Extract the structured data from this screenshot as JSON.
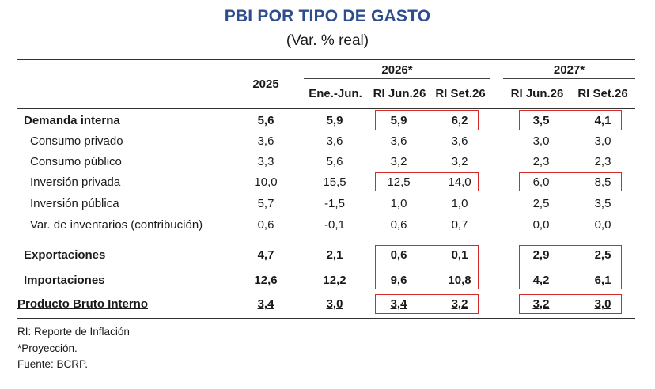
{
  "title": "PBI POR TIPO DE GASTO",
  "subtitle": "(Var. % real)",
  "headers": {
    "group_2026": "2026*",
    "group_2027": "2027*",
    "col_2025": "2025",
    "col_ene_jun": "Ene.-Jun.",
    "col_ri_jun26_a": "RI Jun.26",
    "col_ri_set26_a": "RI Set.26",
    "col_ri_jun26_b": "RI Jun.26",
    "col_ri_set26_b": "RI Set.26"
  },
  "rows": [
    {
      "label": "Demanda interna",
      "values": [
        "5,6",
        "5,9",
        "5,9",
        "6,2",
        "3,5",
        "4,1"
      ]
    },
    {
      "label": "Consumo privado",
      "values": [
        "3,6",
        "3,6",
        "3,6",
        "3,6",
        "3,0",
        "3,0"
      ]
    },
    {
      "label": "Consumo público",
      "values": [
        "3,3",
        "5,6",
        "3,2",
        "3,2",
        "2,3",
        "2,3"
      ]
    },
    {
      "label": "Inversión privada",
      "values": [
        "10,0",
        "15,5",
        "12,5",
        "14,0",
        "6,0",
        "8,5"
      ]
    },
    {
      "label": "Inversión pública",
      "values": [
        "5,7",
        "-1,5",
        "1,0",
        "1,0",
        "2,5",
        "3,5"
      ]
    },
    {
      "label": "Var. de inventarios (contribución)",
      "values": [
        "0,6",
        "-0,1",
        "0,6",
        "0,7",
        "0,0",
        "0,0"
      ]
    },
    {
      "label": "Exportaciones",
      "values": [
        "4,7",
        "2,1",
        "0,6",
        "0,1",
        "2,9",
        "2,5"
      ]
    },
    {
      "label": "Importaciones",
      "values": [
        "12,6",
        "12,2",
        "9,6",
        "10,8",
        "4,2",
        "6,1"
      ]
    },
    {
      "label": "Producto Bruto Interno",
      "values": [
        "3,4",
        "3,0",
        "3,4",
        "3,2",
        "3,2",
        "3,0"
      ]
    }
  ],
  "notes": {
    "ri": "RI: Reporte de Inflación",
    "proj": "*Proyección.",
    "source": "Fuente: BCRP."
  },
  "colors": {
    "title": "#2e4d8f",
    "highlight_box": "#d42a2a"
  }
}
